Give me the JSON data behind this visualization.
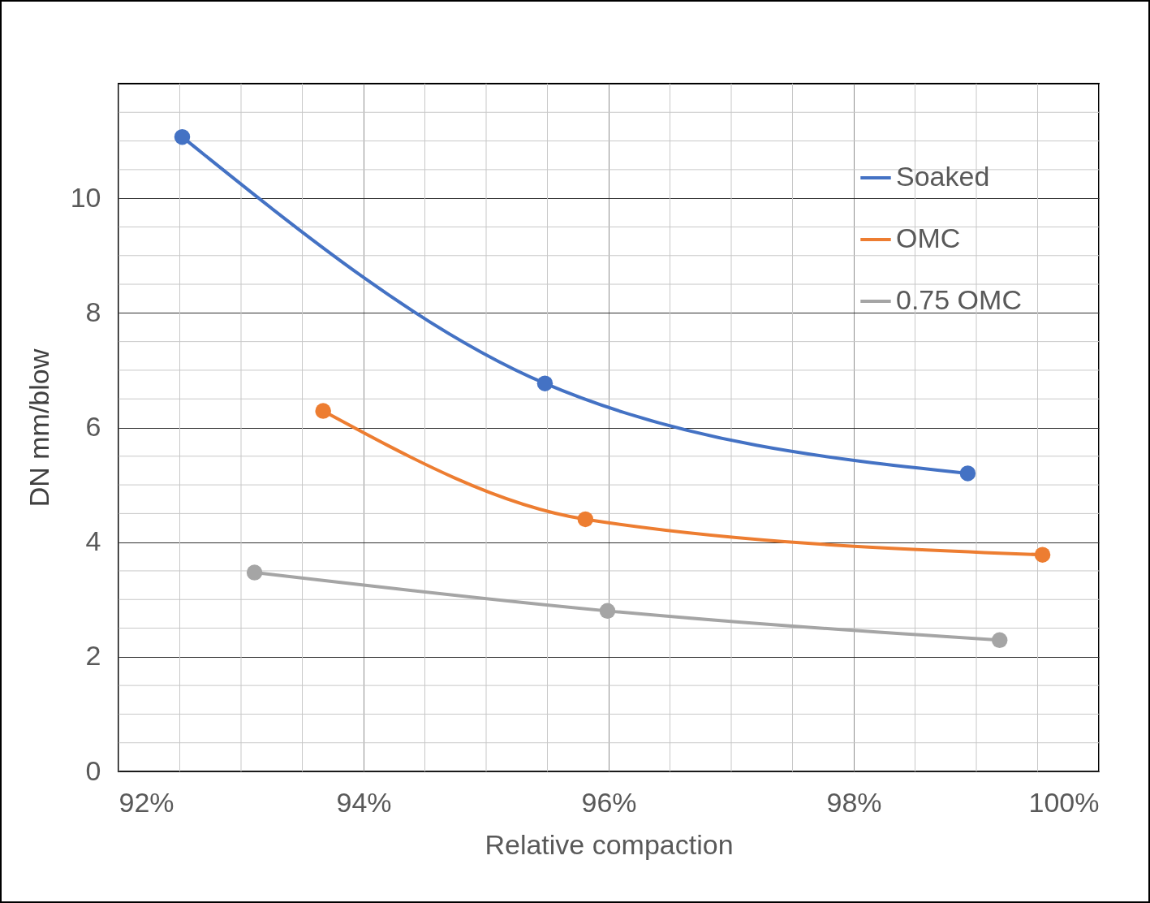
{
  "chart_data": {
    "type": "line",
    "xlabel": "Relative compaction",
    "ylabel": "DN mm/blow",
    "xlim": [
      92,
      100
    ],
    "xticks": [
      {
        "value": 92,
        "label": "92%"
      },
      {
        "value": 94,
        "label": "94%"
      },
      {
        "value": 96,
        "label": "96%"
      },
      {
        "value": 98,
        "label": "98%"
      },
      {
        "value": 100,
        "label": "100%"
      }
    ],
    "ylim": [
      0,
      12
    ],
    "yticks": [
      0,
      2,
      4,
      6,
      8,
      10
    ],
    "grid": true,
    "legend": "top right",
    "marker": "circle",
    "line_style": "solid",
    "series": [
      {
        "name": "Soaked",
        "color": "#4472c4",
        "x": [
          92.52,
          95.48,
          98.93
        ],
        "values": [
          11.07,
          6.77,
          5.2
        ]
      },
      {
        "name": "OMC",
        "color": "#ed7d31",
        "x": [
          93.67,
          95.81,
          99.54
        ],
        "values": [
          6.29,
          4.4,
          3.78
        ]
      },
      {
        "name": "0.75 OMC",
        "color": "#a5a5a5",
        "x": [
          93.11,
          95.99,
          99.19
        ],
        "values": [
          3.47,
          2.8,
          2.29
        ]
      }
    ]
  }
}
